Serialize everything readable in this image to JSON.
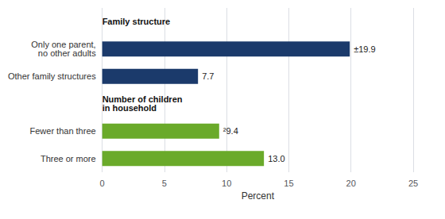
{
  "chart_data": {
    "type": "bar",
    "orientation": "horizontal",
    "categories": [
      "Three or more",
      "Fewer than three",
      null,
      "Other family structures",
      "Only one parent,\nno other adults",
      null
    ],
    "values": [
      13.0,
      9.4,
      null,
      7.7,
      19.9,
      null
    ],
    "value_labels": [
      "13.0",
      "²9.4",
      null,
      "7.7",
      "±19.9",
      null
    ],
    "colors": [
      "#6aaa2a",
      "#6aaa2a",
      null,
      "#1b3a6b",
      "#1b3a6b",
      null
    ],
    "xlabel": "Percent",
    "xlim": [
      0,
      25
    ],
    "xticks": [
      0,
      5,
      10,
      15,
      20,
      25
    ],
    "grid": true,
    "data_labels": true,
    "annotations": [
      "Family structure",
      "Number of children\nin household"
    ]
  }
}
